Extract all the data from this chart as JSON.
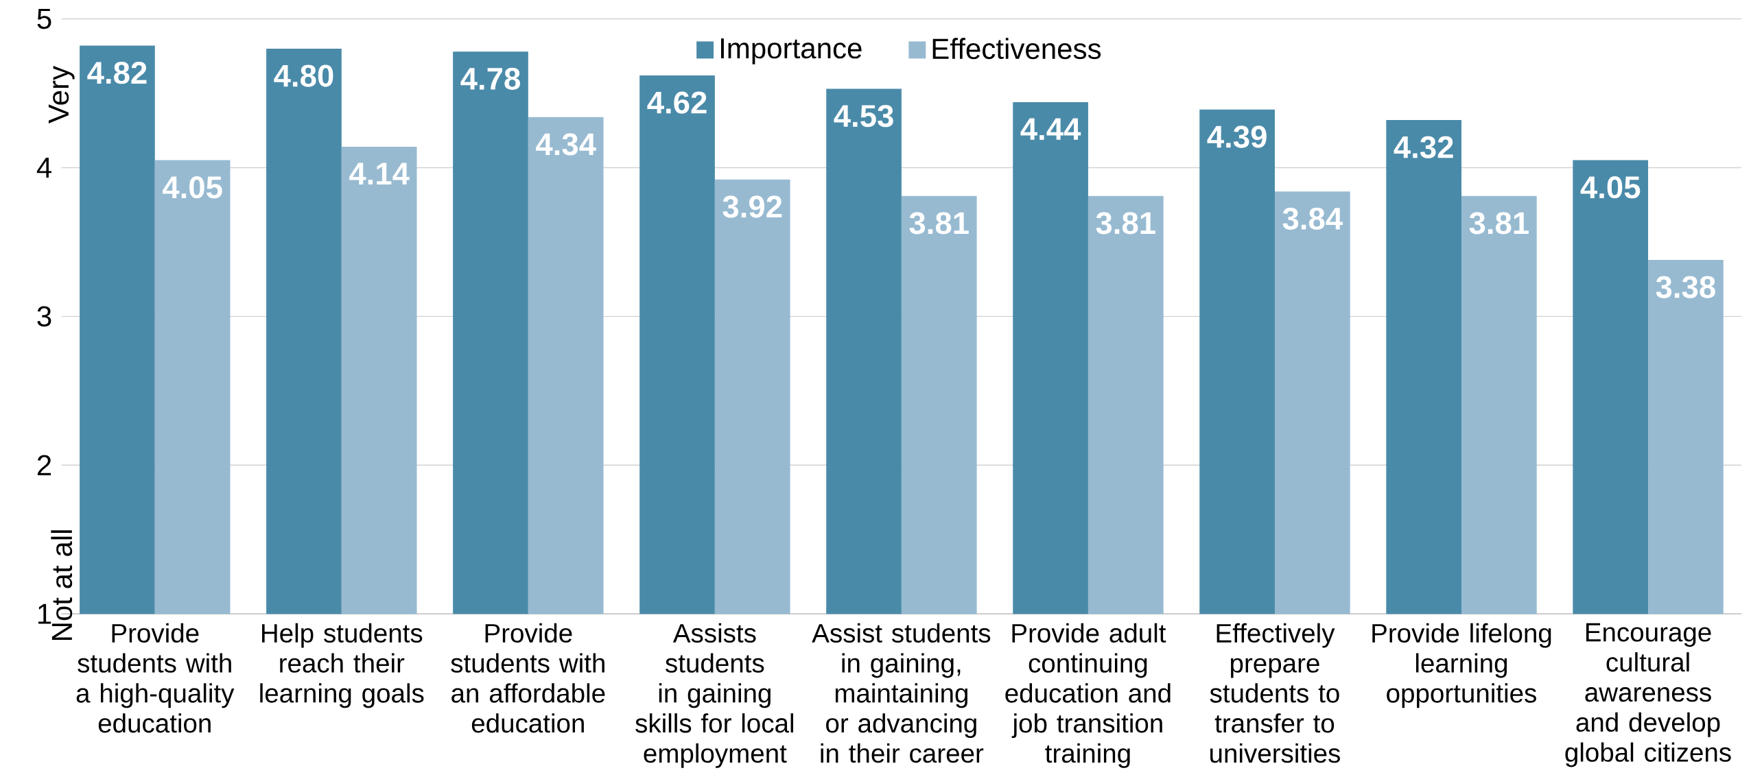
{
  "chart_data": {
    "type": "bar",
    "categories": [
      "Provide students with a high-quality education",
      "Help students reach their learning goals",
      "Provide students with an affordable education",
      "Assists students in gaining skills for local employment",
      "Assist students in gaining, maintaining or advancing in their career",
      "Provide adult continuing education and job transition training",
      "Effectively prepare students to transfer to universities",
      "Provide lifelong learning opportunities",
      "Encourage cultural awareness and develop global citizens"
    ],
    "series": [
      {
        "name": "Importance",
        "color": "#4a8aa9",
        "values": [
          4.82,
          4.8,
          4.78,
          4.62,
          4.53,
          4.44,
          4.39,
          4.32,
          4.05
        ],
        "value_labels": [
          "4.82",
          "4.80",
          "4.78",
          "4.62",
          "4.53",
          "4.44",
          "4.39",
          "4.32",
          "4.05"
        ]
      },
      {
        "name": "Effectiveness",
        "color": "#97bad1",
        "values": [
          4.05,
          4.14,
          4.34,
          3.92,
          3.81,
          3.81,
          3.84,
          3.81,
          3.38
        ],
        "value_labels": [
          "4.05",
          "4.14",
          "4.34",
          "3.92",
          "3.81",
          "3.81",
          "3.84",
          "3.81",
          "3.38"
        ]
      }
    ],
    "ylim": [
      1,
      5
    ],
    "yticks": [
      1,
      2,
      3,
      4,
      5
    ],
    "grid": "y",
    "legend": "top",
    "annotations": [
      "Very",
      "Not at all"
    ]
  }
}
